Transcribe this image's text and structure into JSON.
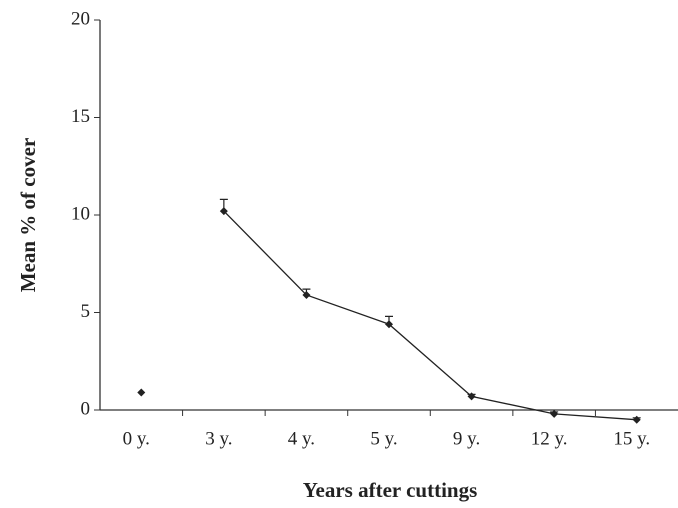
{
  "chart_data": {
    "type": "line",
    "categories": [
      "0 y.",
      "3 y.",
      "4 y.",
      "5 y.",
      "9 y.",
      "12 y.",
      "15 y."
    ],
    "series": [
      {
        "color": "#222222",
        "values": [
          0.9,
          null,
          null,
          null,
          null,
          null,
          null
        ]
      },
      {
        "color": "#222222",
        "values": [
          null,
          10.2,
          5.9,
          4.4,
          0.7,
          -0.2,
          -0.5
        ],
        "errors": [
          null,
          0.6,
          0.3,
          0.4,
          0.1,
          0.1,
          0.1
        ]
      }
    ],
    "ylim": [
      0,
      20
    ],
    "yticks": [
      0,
      5,
      10,
      15,
      20
    ],
    "ylabel": "Mean % of cover",
    "xlabel": "Years after cuttings",
    "grid": false
  }
}
